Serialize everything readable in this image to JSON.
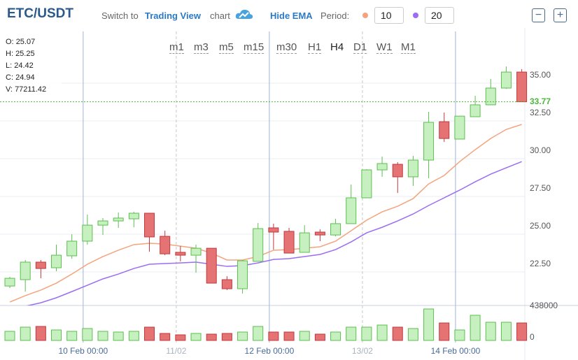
{
  "header": {
    "symbol": "ETC/USDT",
    "switch_prefix": "Switch to",
    "switch_link": "Trading View",
    "switch_suffix": "chart",
    "hide_ema": "Hide EMA",
    "period_label": "Period:",
    "zoom_out": "−",
    "zoom_in": "+"
  },
  "timeframes": [
    "m1",
    "m3",
    "m5",
    "m15",
    "m30",
    "H1",
    "H4",
    "D1",
    "W1",
    "M1"
  ],
  "timeframe_active": "H4",
  "ohlc_box": [
    {
      "label": "O:",
      "value": 25.07
    },
    {
      "label": "H:",
      "value": 25.25
    },
    {
      "label": "L:",
      "value": 24.42
    },
    {
      "label": "C:",
      "value": 24.94
    },
    {
      "label": "V:",
      "value": 77211.42
    }
  ],
  "chart_data": {
    "type": "candlestick",
    "categories": [
      null,
      null,
      null,
      null,
      null,
      null,
      null,
      null,
      null,
      null,
      null,
      null,
      null,
      null,
      null,
      null,
      null,
      null,
      null,
      null,
      null,
      null,
      null,
      null,
      null,
      null,
      null,
      null,
      null,
      null,
      null,
      null,
      null,
      null
    ],
    "open": [
      21.57,
      21.99,
      23.15,
      22.78,
      23.57,
      24.54,
      25.6,
      25.88,
      26.02,
      26.39,
      24.86,
      23.8,
      23.61,
      24.07,
      21.99,
      21.39,
      23.2,
      25.42,
      25.19,
      23.8,
      25.14,
      24.95,
      25.7,
      27.41,
      29.26,
      29.63,
      28.8,
      29.91,
      32.45,
      31.3,
      32.78,
      33.57,
      34.68,
      35.74
    ],
    "high": [
      22.18,
      23.29,
      23.29,
      24.31,
      25.0,
      26.3,
      26.07,
      26.44,
      26.48,
      26.39,
      25.23,
      24.21,
      24.31,
      24.07,
      22.22,
      23.29,
      25.74,
      25.7,
      25.42,
      25.6,
      25.32,
      26.02,
      28.29,
      29.31,
      30.14,
      29.77,
      30.19,
      33.1,
      33.06,
      32.82,
      34.17,
      35.28,
      36.11,
      35.93
    ],
    "low": [
      21.44,
      21.2,
      22.08,
      22.55,
      23.38,
      24.31,
      24.95,
      25.42,
      25.46,
      23.84,
      23.61,
      23.2,
      22.45,
      21.76,
      21.3,
      21.07,
      23.2,
      23.98,
      23.75,
      23.8,
      24.54,
      24.86,
      25.7,
      27.41,
      28.8,
      27.73,
      28.2,
      28.71,
      31.11,
      31.3,
      32.78,
      33.57,
      34.63,
      33.77
    ],
    "close": [
      22.08,
      23.15,
      22.73,
      23.61,
      24.54,
      25.6,
      25.88,
      26.07,
      26.39,
      24.82,
      23.7,
      23.61,
      24.07,
      21.76,
      21.39,
      23.24,
      25.37,
      25.14,
      23.75,
      25.09,
      24.95,
      25.7,
      27.41,
      29.26,
      29.68,
      28.8,
      29.91,
      32.41,
      31.34,
      32.82,
      33.57,
      34.68,
      35.74,
      33.77
    ],
    "volume": [
      126500,
      184900,
      194700,
      146000,
      126500,
      165500,
      126500,
      116800,
      126500,
      184900,
      97300,
      77900,
      97300,
      87600,
      97300,
      116800,
      194700,
      116800,
      116800,
      126500,
      87600,
      116800,
      184900,
      184900,
      214100,
      184900,
      165500,
      438000,
      243300,
      146000,
      350400,
      253100,
      253100,
      243300
    ],
    "up_color": "#c6f0c0",
    "up_border": "#5cbf4f",
    "down_color": "#e57373",
    "down_border": "#c0393b",
    "series": [
      {
        "period": 10,
        "color": "#f4a47c",
        "values": [
          20.51,
          20.93,
          21.3,
          21.76,
          22.36,
          23.01,
          23.52,
          23.94,
          24.31,
          24.4,
          24.35,
          24.21,
          24.07,
          23.75,
          23.29,
          23.29,
          23.52,
          23.94,
          23.98,
          24.07,
          24.17,
          24.54,
          25.23,
          25.93,
          26.48,
          26.85,
          27.36,
          28.33,
          28.89,
          29.81,
          30.6,
          31.34,
          31.94,
          32.27
        ]
      },
      {
        "period": 20,
        "color": "#9c6cf2",
        "values": [
          20.0,
          20.23,
          20.46,
          20.79,
          21.2,
          21.62,
          22.04,
          22.36,
          22.73,
          23.01,
          23.06,
          23.1,
          23.15,
          23.01,
          22.87,
          22.92,
          23.1,
          23.33,
          23.38,
          23.52,
          23.66,
          23.98,
          24.49,
          25.09,
          25.46,
          25.88,
          26.34,
          26.9,
          27.41,
          27.92,
          28.47,
          28.98,
          29.4,
          29.81
        ]
      }
    ],
    "ylim": [
      20.28,
      38.66
    ],
    "yticks": [
      {
        "value": 22.5,
        "label": "22.50"
      },
      {
        "value": 25,
        "label": "25.00"
      },
      {
        "value": 27.5,
        "label": "27.50"
      },
      {
        "value": 30,
        "label": "30.00"
      },
      {
        "value": 32.5,
        "label": "32.50"
      },
      {
        "value": 35,
        "label": "35.00"
      }
    ],
    "volume_ylim": [
      0,
      486650
    ],
    "volume_yticks": [
      0,
      438000
    ],
    "xticks": [
      {
        "value": 5,
        "label": "10 Feb 00:00",
        "dashed": false
      },
      {
        "value": 11,
        "label": "11/02",
        "dashed": true
      },
      {
        "value": 17,
        "label": "12 Feb 00:00",
        "dashed": false
      },
      {
        "value": 23,
        "label": "13/02",
        "dashed": true
      },
      {
        "value": 29,
        "label": "14 Feb 00:00",
        "dashed": false
      }
    ],
    "last_price_color": "#4cb83a",
    "grid": true
  }
}
